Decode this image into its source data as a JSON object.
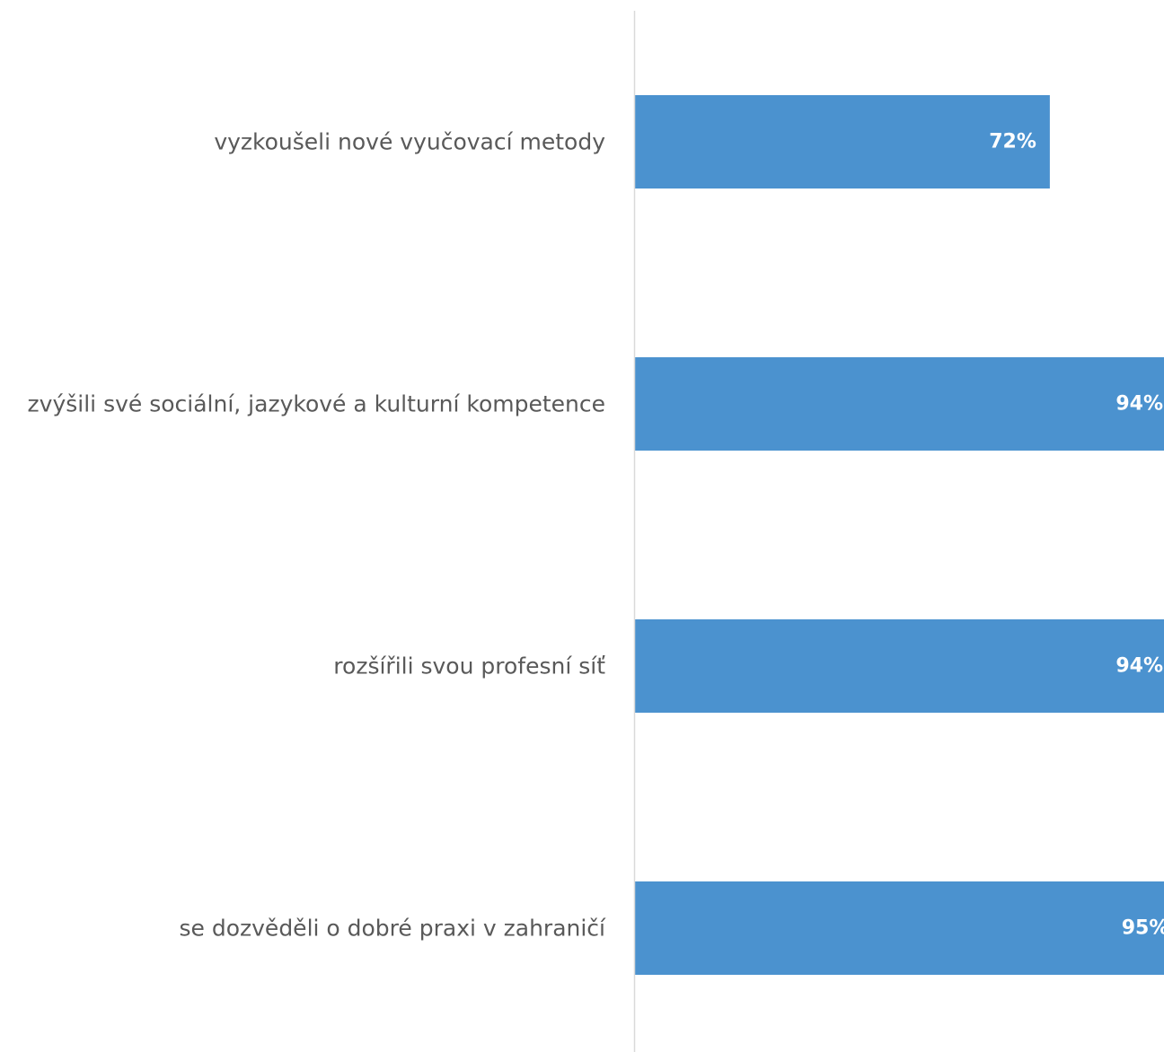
{
  "chart_data": {
    "type": "bar",
    "orientation": "horizontal",
    "categories": [
      "vyzkoušeli nové vyučovací metody",
      "zvýšili své sociální, jazykové a kulturní kompetence",
      "rozšířili svou profesní síť",
      "se dozvěděli o dobré praxi v zahraničí"
    ],
    "values": [
      72,
      94,
      94,
      95
    ],
    "value_labels": [
      "72%",
      "94%",
      "94%",
      "95%"
    ],
    "unit": "%",
    "xlim": [
      0,
      100
    ],
    "grid": false,
    "legend": "none",
    "colors": {
      "bar": "#4b92cf",
      "value_label": "#ffffff",
      "category_label": "#595959",
      "axis": "#d9d9d9"
    }
  }
}
